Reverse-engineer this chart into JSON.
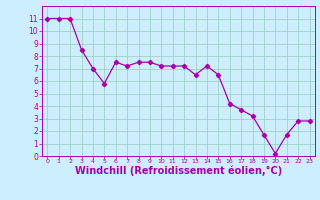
{
  "x": [
    0,
    1,
    2,
    3,
    4,
    5,
    6,
    7,
    8,
    9,
    10,
    11,
    12,
    13,
    14,
    15,
    16,
    17,
    18,
    19,
    20,
    21,
    22,
    23
  ],
  "y": [
    11,
    11,
    11,
    8.5,
    7,
    5.8,
    7.5,
    7.2,
    7.5,
    7.5,
    7.2,
    7.2,
    7.2,
    6.5,
    7.2,
    6.5,
    4.2,
    3.7,
    3.2,
    1.7,
    0.2,
    1.7,
    2.8,
    2.8
  ],
  "line_color": "#aa00aa",
  "marker": "D",
  "marker_size": 2.2,
  "bg_color": "#cceeff",
  "grid_color": "#99ccbb",
  "xlabel": "Windchill (Refroidissement éolien,°C)",
  "tick_label_color": "#aa00aa",
  "xlim": [
    -0.5,
    23.5
  ],
  "ylim": [
    0,
    12
  ],
  "yticks": [
    0,
    1,
    2,
    3,
    4,
    5,
    6,
    7,
    8,
    9,
    10,
    11
  ],
  "xticks": [
    0,
    1,
    2,
    3,
    4,
    5,
    6,
    7,
    8,
    9,
    10,
    11,
    12,
    13,
    14,
    15,
    16,
    17,
    18,
    19,
    20,
    21,
    22,
    23
  ],
  "spine_color": "#aa00aa"
}
